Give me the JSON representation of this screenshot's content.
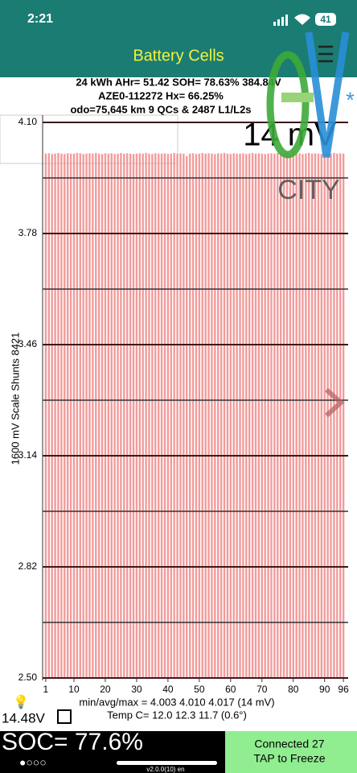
{
  "status_bar": {
    "time": "2:21",
    "battery": "41"
  },
  "header": {
    "title": "Battery Cells"
  },
  "info": {
    "line1": "24 kWh  AHr= 51.42  SOH= 78.63%   384.84V",
    "line2": "AZE0-112272   Hx= 66.25%",
    "line3": "odo=75,645 km 9 QCs & 2487 L1/L2s"
  },
  "logo": {
    "text": "CITY"
  },
  "chart_data": {
    "type": "bar",
    "annotation": "14 mV",
    "ylabel": "1600 mV Scale   Shunts 8421",
    "x": [
      1,
      2,
      3,
      4,
      5,
      6,
      7,
      8,
      9,
      10,
      11,
      12,
      13,
      14,
      15,
      16,
      17,
      18,
      19,
      20,
      21,
      22,
      23,
      24,
      25,
      26,
      27,
      28,
      29,
      30,
      31,
      32,
      33,
      34,
      35,
      36,
      37,
      38,
      39,
      40,
      41,
      42,
      43,
      44,
      45,
      46,
      47,
      48,
      49,
      50,
      51,
      52,
      53,
      54,
      55,
      56,
      57,
      58,
      59,
      60,
      61,
      62,
      63,
      64,
      65,
      66,
      67,
      68,
      69,
      70,
      71,
      72,
      73,
      74,
      75,
      76,
      77,
      78,
      79,
      80,
      81,
      82,
      83,
      84,
      85,
      86,
      87,
      88,
      89,
      90,
      91,
      92,
      93,
      94,
      95,
      96
    ],
    "values": [
      4.01,
      4.011,
      4.009,
      4.01,
      4.012,
      4.01,
      4.009,
      4.011,
      4.01,
      4.01,
      4.012,
      4.011,
      4.009,
      4.01,
      4.011,
      4.01,
      4.012,
      4.01,
      4.009,
      4.011,
      4.01,
      4.011,
      4.009,
      4.01,
      4.012,
      4.01,
      4.011,
      4.01,
      4.009,
      4.01,
      4.011,
      4.01,
      4.012,
      4.01,
      4.009,
      4.011,
      4.01,
      4.01,
      4.011,
      4.009,
      4.01,
      4.012,
      4.01,
      4.011,
      4.01,
      4.003,
      4.01,
      4.011,
      4.009,
      4.01,
      4.012,
      4.01,
      4.011,
      4.01,
      4.009,
      4.011,
      4.01,
      4.012,
      4.01,
      4.009,
      4.011,
      4.01,
      4.01,
      4.011,
      4.009,
      4.01,
      4.012,
      4.01,
      4.011,
      4.01,
      4.009,
      4.01,
      4.011,
      4.01,
      4.012,
      4.01,
      4.009,
      4.011,
      4.01,
      4.017,
      4.01,
      4.011,
      4.009,
      4.01,
      4.012,
      4.01,
      4.011,
      4.01,
      4.009,
      4.01,
      4.011,
      4.01,
      4.012,
      4.01,
      4.011,
      4.01
    ],
    "color": "#ef8a8a",
    "xlim": [
      0,
      97
    ],
    "xticks": [
      1,
      10,
      20,
      30,
      40,
      50,
      60,
      70,
      80,
      90,
      96
    ],
    "ylim": [
      2.5,
      4.1
    ],
    "yticks": [
      {
        "value": 4.1,
        "label": "4.10"
      },
      3.78,
      3.46,
      3.14,
      2.82,
      {
        "value": 2.5,
        "label": "2.50"
      }
    ],
    "minor_yticks": [
      3.94,
      3.62,
      3.3,
      2.98,
      2.66
    ],
    "grid": true
  },
  "footer": {
    "stats": "min/avg/max = 4.003 4.010 4.017  (14 mV)",
    "temp": "Temp C= 12.0  12.3  11.7  (0.6°)",
    "pack_voltage": "14.48V",
    "soc": "SOC= 77.6%",
    "page_dots": "●○○○",
    "status_line1": "Connected 27",
    "status_line2": "TAP to Freeze",
    "version": "v2.0.0(10) en"
  }
}
